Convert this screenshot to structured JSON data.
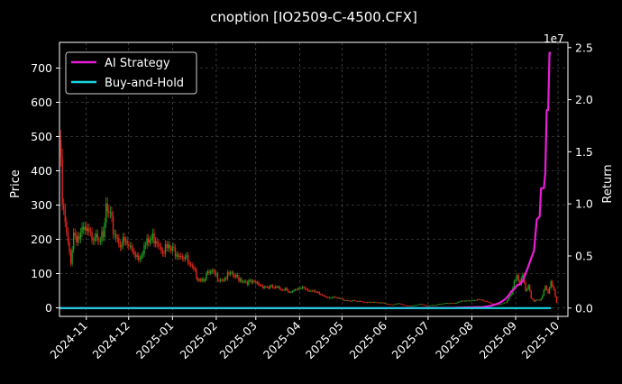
{
  "chart_data": {
    "type": "line",
    "title": "cnoption [IO2509-C-4500.CFX]",
    "xlabel": "",
    "ylabel": "Price",
    "y2label": "Return",
    "y2_exponent_label": "1e7",
    "background": "#000000",
    "grid": true,
    "legend_position": "upper-left",
    "x_ticks": [
      "2024-11",
      "2024-12",
      "2025-01",
      "2025-02",
      "2025-03",
      "2025-04",
      "2025-05",
      "2025-06",
      "2025-07",
      "2025-08",
      "2025-09",
      "2025-10"
    ],
    "y_ticks": [
      "0",
      "100",
      "200",
      "300",
      "400",
      "500",
      "600",
      "700"
    ],
    "y2_ticks": [
      "0.0",
      "0.5",
      "1.0",
      "1.5",
      "2.0",
      "2.5"
    ],
    "ylim": [
      -25,
      775
    ],
    "y2lim": [
      -0.08,
      2.55
    ],
    "candles": {
      "up_color": "#1f9b1f",
      "down_color": "#e0261c",
      "series_close": [
        [
          0,
          490
        ],
        [
          2,
          300
        ],
        [
          4,
          240
        ],
        [
          6,
          180
        ],
        [
          8,
          140
        ],
        [
          10,
          220
        ],
        [
          14,
          205
        ],
        [
          18,
          220
        ],
        [
          22,
          205
        ],
        [
          26,
          230
        ],
        [
          29,
          210
        ],
        [
          31,
          190
        ],
        [
          33,
          290
        ],
        [
          35,
          260
        ],
        [
          38,
          230
        ],
        [
          41,
          205
        ],
        [
          44,
          190
        ],
        [
          47,
          185
        ],
        [
          50,
          175
        ],
        [
          53,
          165
        ],
        [
          56,
          150
        ],
        [
          59,
          175
        ],
        [
          62,
          185
        ],
        [
          65,
          200
        ],
        [
          68,
          210
        ],
        [
          71,
          190
        ],
        [
          74,
          175
        ],
        [
          77,
          170
        ],
        [
          80,
          165
        ],
        [
          83,
          170
        ],
        [
          86,
          160
        ],
        [
          89,
          150
        ],
        [
          92,
          120
        ],
        [
          95,
          105
        ],
        [
          98,
          90
        ],
        [
          101,
          85
        ],
        [
          104,
          95
        ],
        [
          108,
          100
        ],
        [
          112,
          90
        ],
        [
          116,
          85
        ],
        [
          120,
          95
        ],
        [
          124,
          90
        ],
        [
          128,
          85
        ],
        [
          132,
          78
        ],
        [
          136,
          72
        ],
        [
          140,
          70
        ],
        [
          144,
          65
        ],
        [
          148,
          60
        ],
        [
          152,
          58
        ],
        [
          156,
          55
        ],
        [
          160,
          58
        ],
        [
          164,
          45
        ],
        [
          168,
          50
        ],
        [
          172,
          62
        ],
        [
          176,
          55
        ],
        [
          180,
          45
        ],
        [
          184,
          40
        ],
        [
          188,
          35
        ],
        [
          192,
          30
        ],
        [
          196,
          28
        ],
        [
          200,
          25
        ],
        [
          204,
          22
        ],
        [
          208,
          20
        ],
        [
          212,
          18
        ],
        [
          216,
          16
        ],
        [
          220,
          18
        ],
        [
          224,
          15
        ],
        [
          228,
          14
        ],
        [
          232,
          12
        ],
        [
          236,
          10
        ],
        [
          240,
          12
        ],
        [
          244,
          8
        ],
        [
          248,
          6
        ],
        [
          252,
          8
        ],
        [
          256,
          10
        ],
        [
          260,
          6
        ],
        [
          264,
          8
        ],
        [
          268,
          10
        ],
        [
          272,
          12
        ],
        [
          276,
          14
        ],
        [
          280,
          15
        ],
        [
          284,
          18
        ],
        [
          288,
          20
        ],
        [
          292,
          22
        ],
        [
          296,
          25
        ],
        [
          300,
          20
        ],
        [
          304,
          15
        ],
        [
          308,
          12
        ],
        [
          312,
          10
        ],
        [
          316,
          15
        ],
        [
          320,
          40
        ],
        [
          322,
          80
        ],
        [
          324,
          100
        ],
        [
          326,
          70
        ],
        [
          328,
          90
        ],
        [
          330,
          45
        ],
        [
          332,
          60
        ],
        [
          334,
          30
        ],
        [
          336,
          20
        ],
        [
          338,
          25
        ],
        [
          340,
          22
        ],
        [
          342,
          35
        ],
        [
          344,
          60
        ],
        [
          346,
          40
        ],
        [
          348,
          75
        ],
        [
          350,
          55
        ],
        [
          352,
          15
        ]
      ]
    },
    "series": [
      {
        "name": "AI Strategy",
        "color": "#e81ed7",
        "axis": "right",
        "points": [
          [
            0,
            0
          ],
          [
            60,
            0
          ],
          [
            120,
            0
          ],
          [
            180,
            0
          ],
          [
            240,
            0
          ],
          [
            280,
            0.002
          ],
          [
            300,
            0.01
          ],
          [
            305,
            0.02
          ],
          [
            310,
            0.04
          ],
          [
            313,
            0.06
          ],
          [
            316,
            0.09
          ],
          [
            318,
            0.12
          ],
          [
            320,
            0.16
          ],
          [
            322,
            0.18
          ],
          [
            324,
            0.22
          ],
          [
            326,
            0.23
          ],
          [
            328,
            0.26
          ],
          [
            330,
            0.33
          ],
          [
            332,
            0.4
          ],
          [
            334,
            0.48
          ],
          [
            336,
            0.55
          ],
          [
            338,
            0.85
          ],
          [
            340,
            0.88
          ],
          [
            341,
            1.15
          ],
          [
            343,
            1.15
          ],
          [
            344,
            1.3
          ],
          [
            345,
            1.9
          ],
          [
            346,
            1.9
          ],
          [
            347,
            2.45
          ],
          [
            348,
            2.45
          ]
        ]
      },
      {
        "name": "Buy-and-Hold",
        "color": "#17d4e3",
        "axis": "right",
        "points": [
          [
            0,
            0
          ],
          [
            348,
            0
          ]
        ]
      }
    ]
  }
}
